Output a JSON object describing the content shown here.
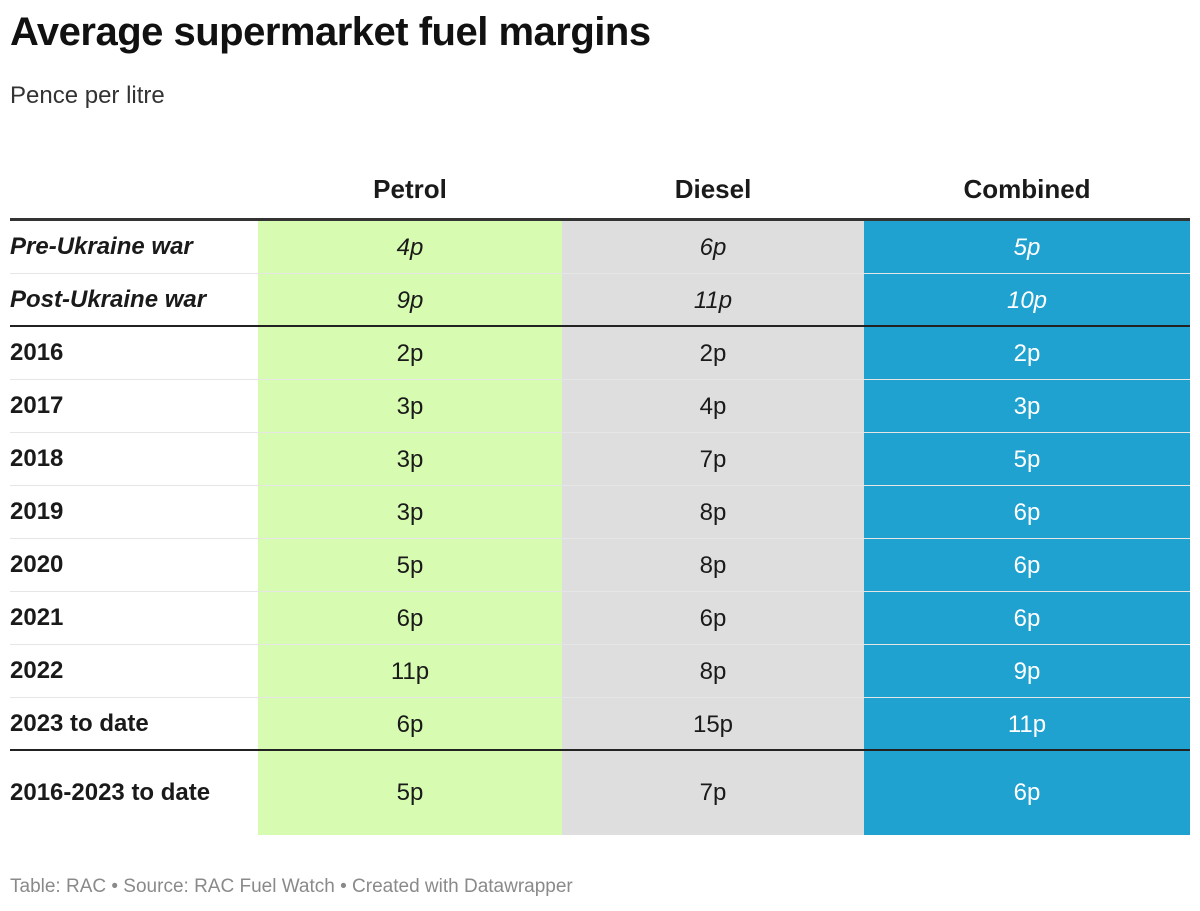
{
  "title": "Average supermarket fuel margins",
  "subtitle": "Pence per litre",
  "footer": "Table: RAC • Source: RAC Fuel Watch • Created with Datawrapper",
  "colors": {
    "petrol": "#d7fcb1",
    "diesel": "#dedede",
    "combined": "#1fa2cf"
  },
  "chart_data": {
    "type": "table",
    "title": "Average supermarket fuel margins",
    "subtitle": "Pence per litre",
    "columns": [
      "",
      "Petrol",
      "Diesel",
      "Combined"
    ],
    "rows": [
      {
        "label": "Pre-Ukraine war",
        "petrol": "4p",
        "diesel": "6p",
        "combined": "5p"
      },
      {
        "label": "Post-Ukraine war",
        "petrol": "9p",
        "diesel": "11p",
        "combined": "10p"
      },
      {
        "label": "2016",
        "petrol": "2p",
        "diesel": "2p",
        "combined": "2p"
      },
      {
        "label": "2017",
        "petrol": "3p",
        "diesel": "4p",
        "combined": "3p"
      },
      {
        "label": "2018",
        "petrol": "3p",
        "diesel": "7p",
        "combined": "5p"
      },
      {
        "label": "2019",
        "petrol": "3p",
        "diesel": "8p",
        "combined": "6p"
      },
      {
        "label": "2020",
        "petrol": "5p",
        "diesel": "8p",
        "combined": "6p"
      },
      {
        "label": "2021",
        "petrol": "6p",
        "diesel": "6p",
        "combined": "6p"
      },
      {
        "label": "2022",
        "petrol": "11p",
        "diesel": "8p",
        "combined": "9p"
      },
      {
        "label": "2023 to date",
        "petrol": "6p",
        "diesel": "15p",
        "combined": "11p"
      },
      {
        "label": "2016-2023 to date",
        "petrol": "5p",
        "diesel": "7p",
        "combined": "6p"
      }
    ]
  }
}
